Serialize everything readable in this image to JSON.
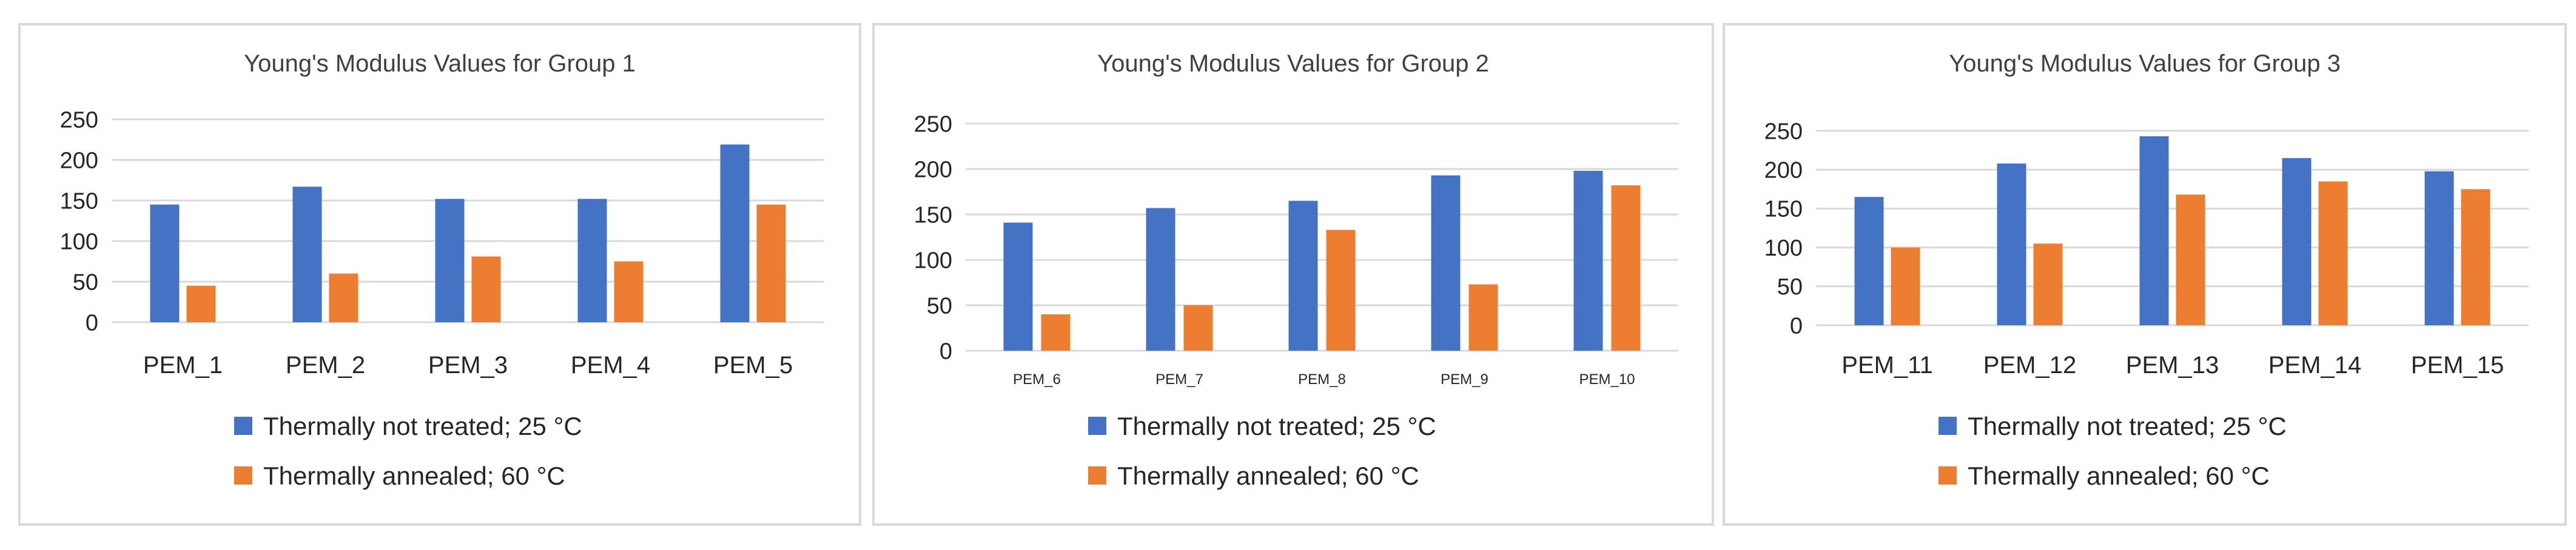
{
  "chart_data": [
    {
      "type": "bar",
      "title": "Young's Modulus Values for Group 1",
      "categories": [
        "PEM_1",
        "PEM_2",
        "PEM_3",
        "PEM_4",
        "PEM_5"
      ],
      "series": [
        {
          "name": "Thermally not treated; 25  °C",
          "color": "#4472c4",
          "values": [
            145,
            167,
            152,
            152,
            219
          ]
        },
        {
          "name": "Thermally annealed; 60  °C",
          "color": "#ed7d31",
          "values": [
            45,
            60,
            81,
            75,
            145
          ]
        }
      ],
      "yticks": [
        "0",
        "50",
        "100",
        "150",
        "200",
        "250"
      ],
      "ylim": [
        0,
        250
      ],
      "grid": true,
      "legend": "bottom"
    },
    {
      "type": "bar",
      "title": "Young's Modulus Values for Group 2",
      "categories": [
        "PEM_6",
        "PEM_7",
        "PEM_8",
        "PEM_9",
        "PEM_10"
      ],
      "series": [
        {
          "name": "Thermally not treated; 25  °C",
          "color": "#4472c4",
          "values": [
            141,
            157,
            165,
            193,
            198
          ]
        },
        {
          "name": "Thermally annealed; 60  °C",
          "color": "#ed7d31",
          "values": [
            40,
            50,
            133,
            73,
            182
          ]
        }
      ],
      "yticks": [
        "0",
        "50",
        "100",
        "150",
        "200",
        "250"
      ],
      "ylim": [
        0,
        250
      ],
      "grid": true,
      "legend": "bottom"
    },
    {
      "type": "bar",
      "title": "Young's Modulus Values for Group 3",
      "categories": [
        "PEM_11",
        "PEM_12",
        "PEM_13",
        "PEM_14",
        "PEM_15"
      ],
      "series": [
        {
          "name": "Thermally not treated; 25  °C",
          "color": "#4472c4",
          "values": [
            165,
            208,
            243,
            215,
            198
          ]
        },
        {
          "name": "Thermally annealed; 60  °C",
          "color": "#ed7d31",
          "values": [
            100,
            105,
            168,
            185,
            175
          ]
        }
      ],
      "yticks": [
        "0",
        "50",
        "100",
        "150",
        "200",
        "250"
      ],
      "ylim": [
        0,
        250
      ],
      "grid": true,
      "legend": "bottom"
    }
  ]
}
